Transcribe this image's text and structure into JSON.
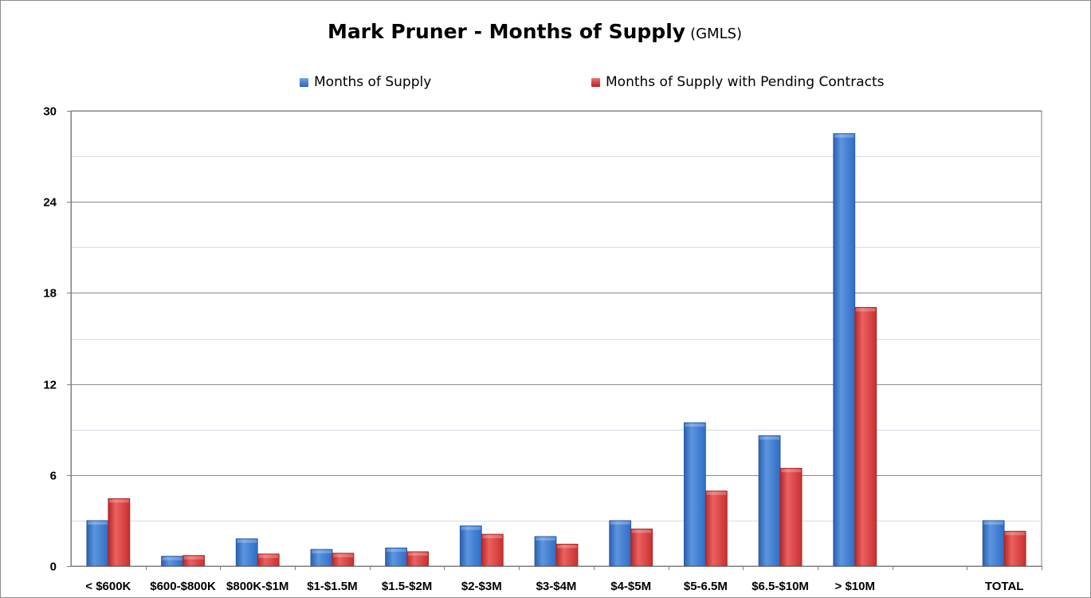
{
  "chart_data": {
    "type": "bar",
    "title": "Mark Pruner - Months of Supply",
    "subtitle": "(GMLS)",
    "xlabel": "",
    "ylabel": "",
    "ylim": [
      0,
      30
    ],
    "yticks": [
      0,
      6,
      12,
      18,
      24,
      30
    ],
    "grid": true,
    "legend_position": "top",
    "categories": [
      "< $600K",
      "$600-$800K",
      "$800K-$1M",
      "$1-$1.5M",
      "$1.5-$2M",
      "$2-$3M",
      "$3-$4M",
      "$4-$5M",
      "$5-6.5M",
      "$6.5-$10M",
      "> $10M",
      "",
      "TOTAL"
    ],
    "series": [
      {
        "name": "Months of Supply",
        "color": "#3d7fd6",
        "values": [
          3.0,
          0.65,
          1.8,
          1.1,
          1.2,
          2.65,
          1.95,
          3.0,
          9.45,
          8.6,
          28.5,
          null,
          3.0
        ]
      },
      {
        "name": "Months of Supply with Pending Contracts",
        "color": "#d93a3a",
        "values": [
          4.45,
          0.7,
          0.8,
          0.85,
          0.95,
          2.1,
          1.45,
          2.45,
          4.95,
          6.45,
          17.05,
          null,
          2.3
        ]
      }
    ]
  }
}
